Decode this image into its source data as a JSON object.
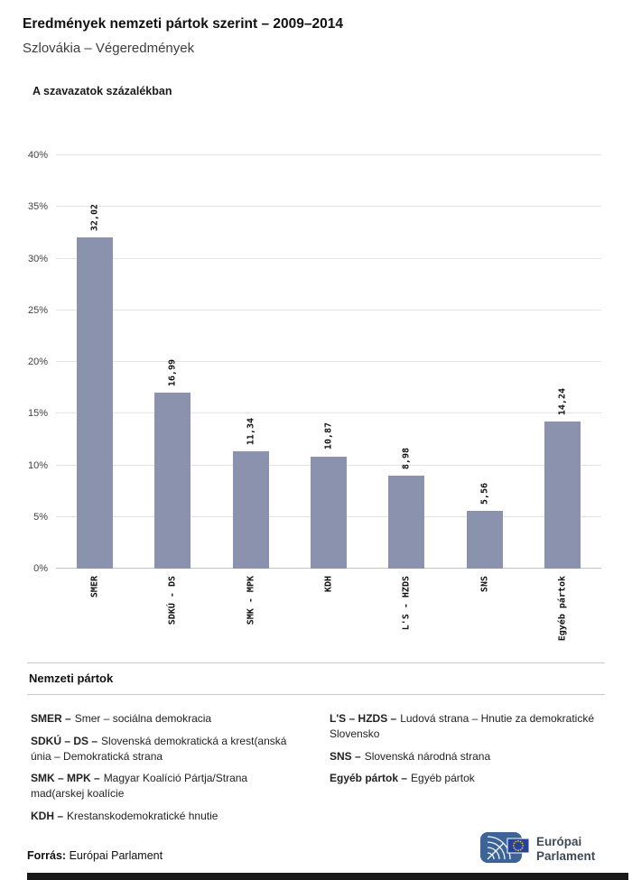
{
  "header": {
    "title": "Eredmények nemzeti pártok szerint – 2009–2014",
    "subtitle": "Szlovákia – Végeredmények"
  },
  "chart": {
    "section_title": "A szavazatok százalékban"
  },
  "chart_data": {
    "type": "bar",
    "title": "A szavazatok százalékban",
    "categories": [
      "SMER",
      "SDKÚ - DS",
      "SMK - MPK",
      "KDH",
      "L'S - HZDS",
      "SNS",
      "Egyéb pártok"
    ],
    "values": [
      32.02,
      16.99,
      11.34,
      10.87,
      8.98,
      5.56,
      14.24
    ],
    "value_labels": [
      "32,02",
      "16,99",
      "11,34",
      "10,87",
      "8,98",
      "5,56",
      "14,24"
    ],
    "xlabel": "",
    "ylabel": "",
    "ylim": [
      0,
      40
    ],
    "ytick_step": 5,
    "ytick_labels": [
      "0%",
      "5%",
      "10%",
      "15%",
      "20%",
      "25%",
      "30%",
      "35%",
      "40%"
    ],
    "grid": true,
    "legend_position": "none",
    "bar_color": "#8b92ad"
  },
  "legend": {
    "title": "Nemzeti pártok",
    "columns": [
      {
        "items": [
          {
            "term": "SMER –",
            "definition": "Smer – sociálna demokracia"
          },
          {
            "term": "SDKÚ – DS –",
            "definition": "Slovenská demokratická a krest(anská únia – Demokratická strana"
          },
          {
            "term": "SMK – MPK –",
            "definition": "Magyar Koalíció Pártja/Strana mad(arskej koalície"
          },
          {
            "term": "KDH –",
            "definition": "Krestanskodemokratické hnutie"
          }
        ]
      },
      {
        "items": [
          {
            "term": "L'S – HZDS –",
            "definition": "Ludová strana – Hnutie za demokratické Slovensko"
          },
          {
            "term": "SNS –",
            "definition": "Slovenská národná strana"
          },
          {
            "term": "Egyéb pártok –",
            "definition": "Egyéb pártok"
          }
        ]
      }
    ]
  },
  "footer": {
    "source_label": "Forrás:",
    "source_value": "Európai Parlament",
    "logo_line1": "Európai",
    "logo_line2": "Parlament"
  }
}
